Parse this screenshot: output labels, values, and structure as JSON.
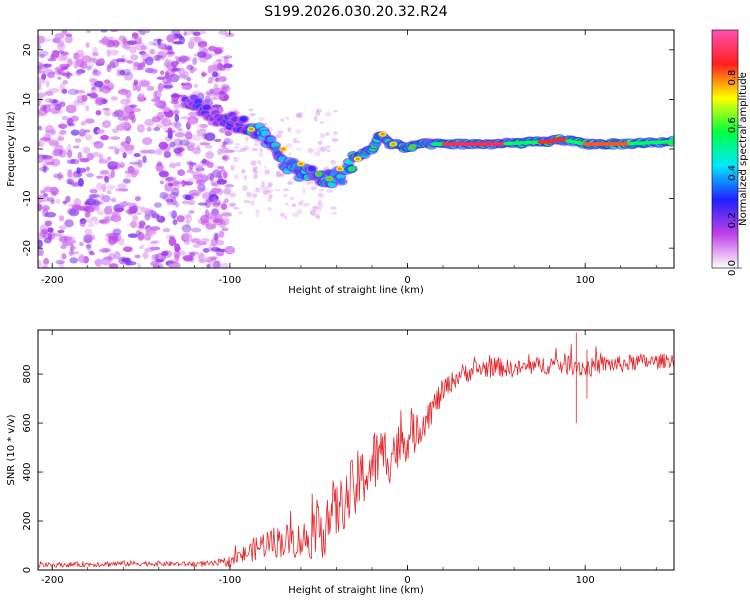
{
  "title": "S199.2026.030.20.32.R24",
  "colors": {
    "snr_line": "#e8262a",
    "axis": "#000000"
  },
  "chart_data": [
    {
      "type": "heatmap",
      "name": "spectrogram",
      "xlabel": "Height of straight line (km)",
      "ylabel": "Frequency (Hz)",
      "xlim": [
        -208,
        150
      ],
      "ylim": [
        -24,
        24
      ],
      "xticks": [
        -200,
        -100,
        0,
        100
      ],
      "yticks": [
        20,
        10,
        0,
        -10,
        -20
      ],
      "colorbar": {
        "label": "Normalized spectral amplitude",
        "range": [
          0,
          1
        ],
        "ticks": [
          "0.0",
          "0.2",
          "0.4",
          "0.6",
          "0.8"
        ],
        "tick_values": [
          0.0,
          0.2,
          0.4,
          0.6,
          0.8
        ],
        "colors": [
          "#ffffff",
          "#c040e8",
          "#2020ff",
          "#00e8ff",
          "#00ff40",
          "#ffff00",
          "#ff2020",
          "#ff50b0"
        ]
      },
      "ridge": {
        "x": [
          -125,
          -110,
          -95,
          -85,
          -75,
          -65,
          -55,
          -48,
          -42,
          -36,
          -30,
          -25,
          -20,
          -15,
          -10,
          -5,
          0,
          5,
          20,
          50,
          80,
          85,
          100,
          120,
          150
        ],
        "y": [
          10,
          7,
          5,
          4,
          0,
          -4,
          -5,
          -6,
          -6,
          -5,
          -2,
          -1,
          0,
          3,
          1,
          1,
          0,
          1,
          1,
          1,
          1.5,
          2,
          1,
          1,
          1.5
        ]
      }
    },
    {
      "type": "line",
      "name": "snr",
      "xlabel": "Height of straight line (km)",
      "ylabel": "SNR (10 * v/v)",
      "xlim": [
        -208,
        150
      ],
      "ylim": [
        0,
        980
      ],
      "xticks": [
        -200,
        -100,
        0,
        100
      ],
      "yticks": [
        0,
        200,
        400,
        600,
        800
      ],
      "series": [
        {
          "name": "SNR",
          "x": [
            -208,
            -190,
            -170,
            -150,
            -130,
            -110,
            -100,
            -90,
            -80,
            -70,
            -60,
            -50,
            -45,
            -40,
            -35,
            -30,
            -25,
            -20,
            -15,
            -10,
            -5,
            0,
            5,
            10,
            15,
            20,
            25,
            30,
            40,
            50,
            60,
            70,
            80,
            90,
            95,
            100,
            110,
            120,
            130,
            140,
            150
          ],
          "values": [
            20,
            22,
            25,
            27,
            25,
            25,
            35,
            70,
            110,
            120,
            120,
            150,
            220,
            240,
            280,
            330,
            380,
            430,
            470,
            480,
            500,
            540,
            560,
            620,
            670,
            730,
            770,
            800,
            820,
            830,
            820,
            830,
            840,
            840,
            840,
            820,
            840,
            840,
            850,
            850,
            860
          ],
          "noise": [
            10,
            10,
            12,
            12,
            10,
            12,
            22,
            40,
            60,
            70,
            75,
            110,
            160,
            120,
            110,
            150,
            120,
            150,
            110,
            130,
            100,
            90,
            80,
            70,
            60,
            50,
            40,
            40,
            40,
            40,
            35,
            35,
            40,
            45,
            45,
            40,
            35,
            35,
            35,
            30,
            30
          ]
        }
      ]
    }
  ]
}
